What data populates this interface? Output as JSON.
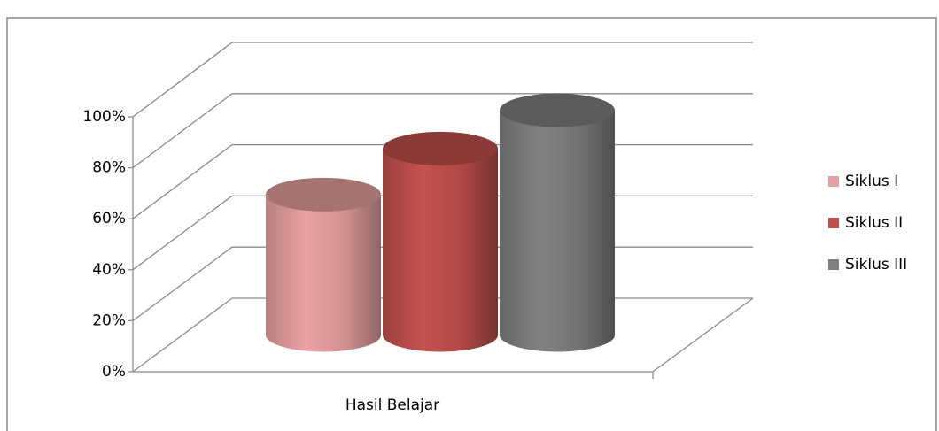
{
  "chart_data": {
    "type": "cylinder3d",
    "categories": [
      "Hasil Belajar"
    ],
    "series": [
      {
        "name": "Siklus I",
        "color": "#e6a0a0",
        "values": [
          55
        ]
      },
      {
        "name": "Siklus II",
        "color": "#c0504d",
        "values": [
          73
        ]
      },
      {
        "name": "Siklus III",
        "color": "#7f7f7f",
        "values": [
          88
        ]
      }
    ],
    "ylim": [
      0,
      100
    ],
    "yticks": [
      {
        "value": 0,
        "label": "0%"
      },
      {
        "value": 20,
        "label": "20%"
      },
      {
        "value": 40,
        "label": "40%"
      },
      {
        "value": 60,
        "label": "60%"
      },
      {
        "value": 80,
        "label": "80%"
      },
      {
        "value": 100,
        "label": "100%"
      }
    ],
    "grid": true,
    "legend": "right"
  }
}
